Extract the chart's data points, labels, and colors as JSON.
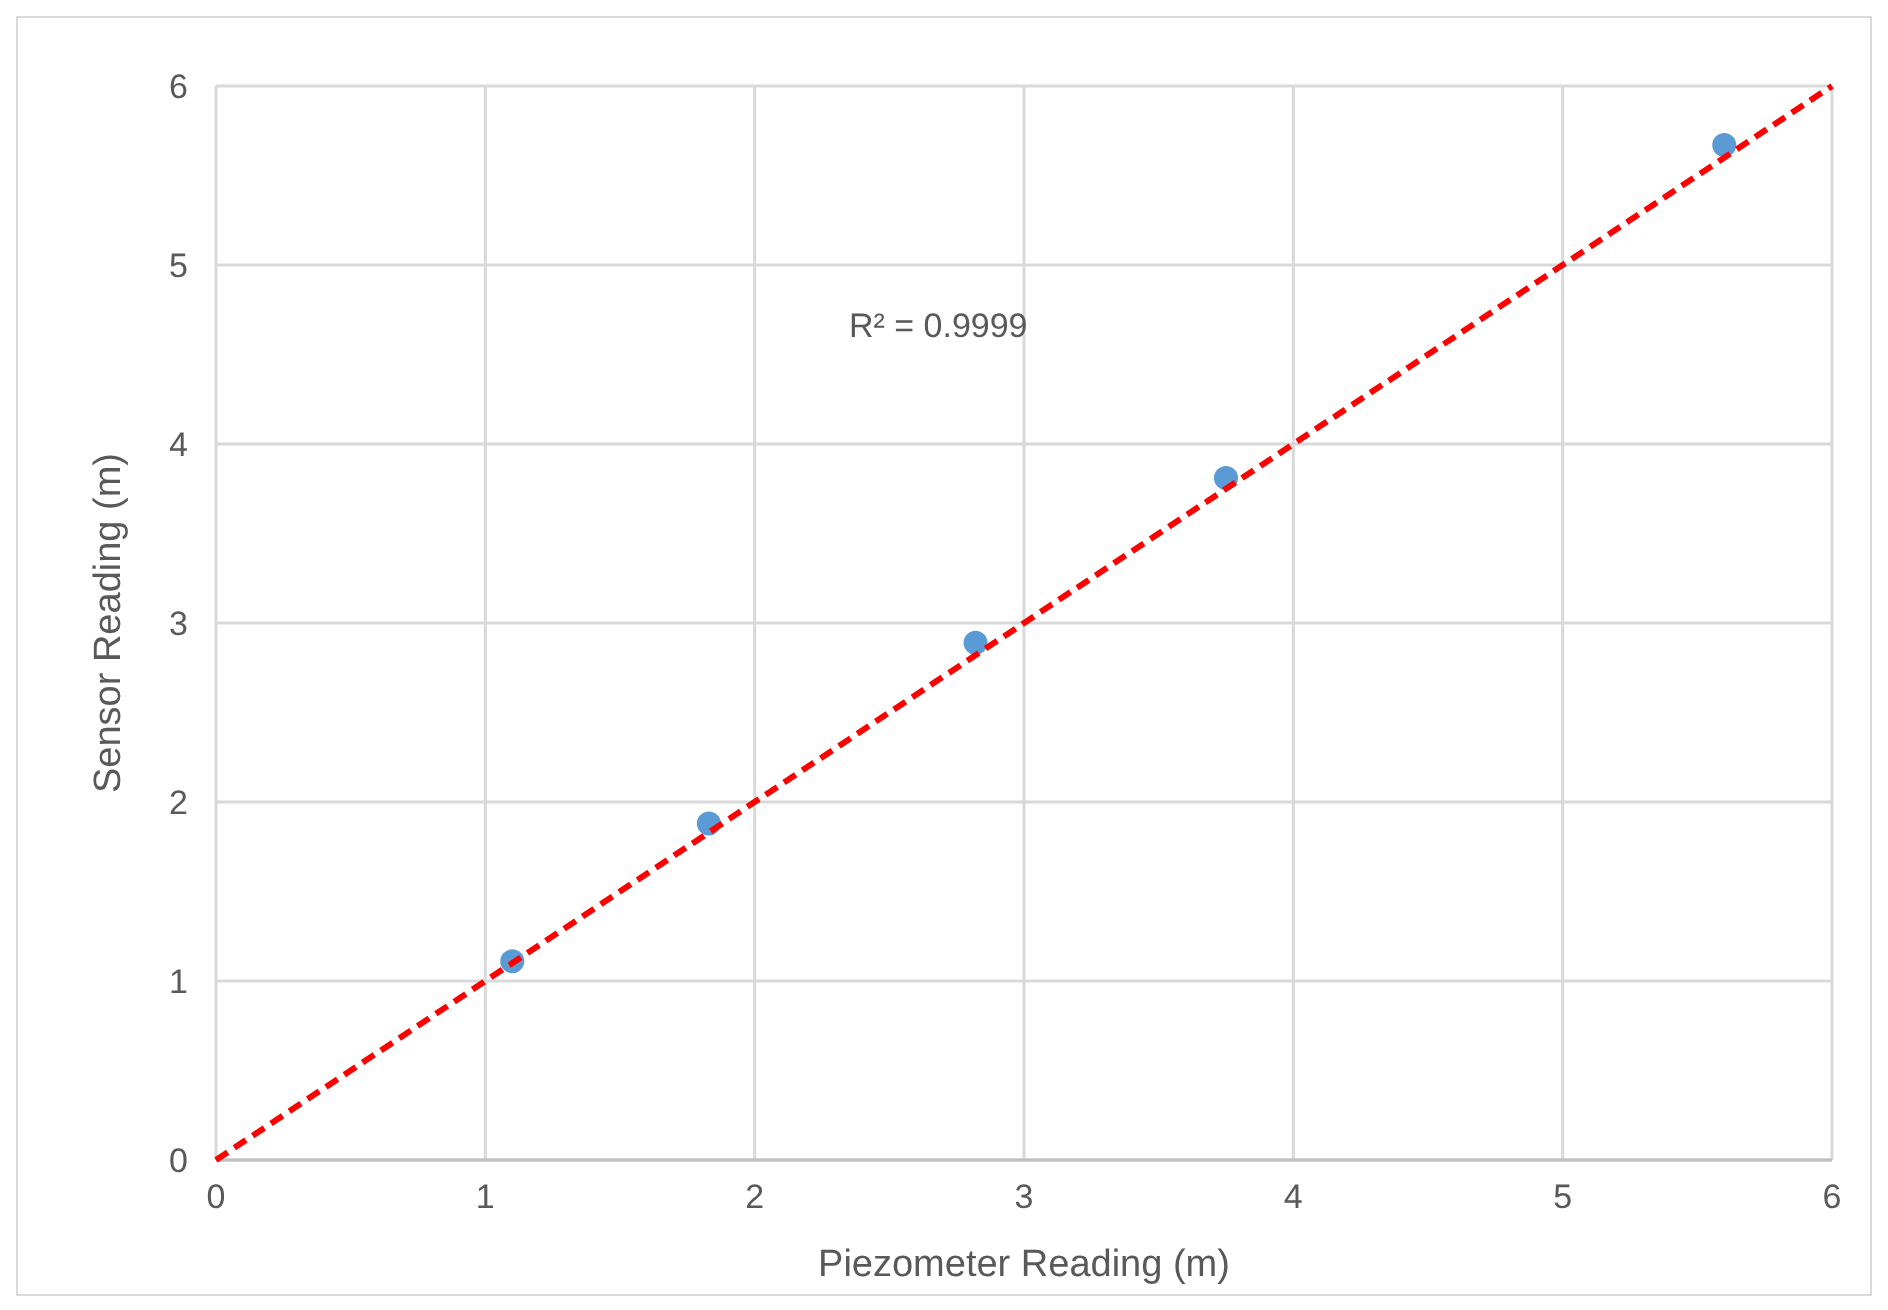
{
  "chart_data": {
    "type": "scatter",
    "xlabel": "Piezometer Reading (m)",
    "ylabel": "Sensor Reading (m)",
    "annotations": [
      "R² = 0.9999"
    ],
    "xlim": [
      0,
      6
    ],
    "xticks": [
      0,
      1,
      2,
      3,
      4,
      5,
      6
    ],
    "ylim": [
      0,
      6
    ],
    "yticks": [
      0,
      1,
      2,
      3,
      4,
      5,
      6
    ],
    "grid": true,
    "series": [
      {
        "type": "scatter",
        "color": "#5b9bd5",
        "marker": "circle",
        "x": [
          1.1,
          1.83,
          2.82,
          3.75,
          5.6
        ],
        "values": [
          1.11,
          1.88,
          2.89,
          3.81,
          5.67
        ]
      },
      {
        "type": "line",
        "color": "#ff0000",
        "marker": "none",
        "line_style": "dashed",
        "x": [
          0,
          6
        ],
        "values": [
          0,
          6
        ]
      }
    ]
  }
}
